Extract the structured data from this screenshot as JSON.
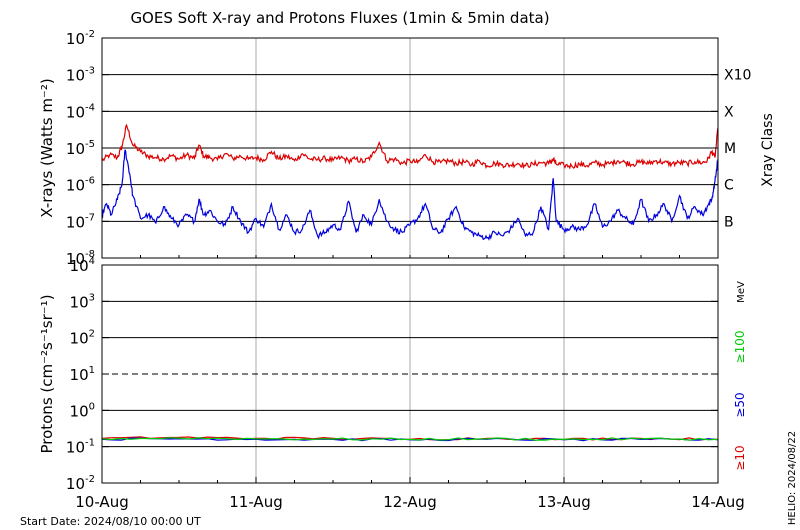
{
  "chart_data": [
    {
      "type": "line",
      "panel": "xray",
      "title": "GOES Soft X-ray and Protons Fluxes   (1min & 5min data)",
      "ylabel": "X-rays (Watts m⁻²)",
      "yscale": "log",
      "ylim": [
        "1e-8",
        "1e-2"
      ],
      "ytick_bases": [
        "10",
        "10",
        "10",
        "10",
        "10",
        "10",
        "10"
      ],
      "ytick_exponents": [
        "-8",
        "-7",
        "-6",
        "-5",
        "-4",
        "-3",
        "-2"
      ],
      "right_label": "Xray Class",
      "classes": [
        {
          "label": "B",
          "level": 1e-07
        },
        {
          "label": "C",
          "level": 1e-06
        },
        {
          "label": "M",
          "level": 1e-05
        },
        {
          "label": "X",
          "level": 0.0001
        },
        {
          "label": "X10",
          "level": 0.001
        }
      ],
      "series": [
        {
          "color": "#dd0000",
          "x": [
            0,
            0.05,
            0.1,
            0.13,
            0.16,
            0.2,
            0.25,
            0.3,
            0.35,
            0.4,
            0.45,
            0.5,
            0.55,
            0.6,
            0.63,
            0.66,
            0.7,
            0.75,
            0.8,
            0.85,
            0.9,
            0.95,
            1.0,
            1.05,
            1.1,
            1.15,
            1.2,
            1.25,
            1.3,
            1.35,
            1.4,
            1.45,
            1.5,
            1.55,
            1.6,
            1.65,
            1.7,
            1.75,
            1.8,
            1.85,
            1.9,
            1.95,
            2.0,
            2.05,
            2.1,
            2.15,
            2.2,
            2.25,
            2.3,
            2.35,
            2.4,
            2.45,
            2.5,
            2.55,
            2.6,
            2.65,
            2.7,
            2.75,
            2.8,
            2.85,
            2.9,
            2.93,
            2.95,
            3.0,
            3.05,
            3.1,
            3.15,
            3.2,
            3.25,
            3.3,
            3.35,
            3.4,
            3.45,
            3.5,
            3.55,
            3.6,
            3.65,
            3.7,
            3.75,
            3.8,
            3.85,
            3.9,
            3.93,
            3.96,
            3.98,
            4.0
          ],
          "y": [
            4.5e-06,
            6.5e-06,
            5.5e-06,
            1.1e-05,
            4.2e-05,
            1.2e-05,
            8e-06,
            6e-06,
            5.5e-06,
            5e-06,
            6.2e-06,
            5e-06,
            6.5e-06,
            5.2e-06,
            1.2e-05,
            6e-06,
            5.5e-06,
            4.8e-06,
            7e-06,
            5.2e-06,
            6e-06,
            5e-06,
            5.5e-06,
            4.8e-06,
            8e-06,
            5e-06,
            6e-06,
            4.5e-06,
            7e-06,
            5e-06,
            4.8e-06,
            5.2e-06,
            4.6e-06,
            5.5e-06,
            4.5e-06,
            5e-06,
            4.2e-06,
            5.8e-06,
            1.4e-05,
            4.5e-06,
            5e-06,
            3.8e-06,
            4.5e-06,
            4e-06,
            6.5e-06,
            4.2e-06,
            4e-06,
            4.5e-06,
            3.8e-06,
            4.2e-06,
            3.5e-06,
            4.5e-06,
            3.3e-06,
            3.8e-06,
            3.5e-06,
            3.4e-06,
            3.8e-06,
            3.3e-06,
            3.6e-06,
            4e-06,
            3.8e-06,
            5e-06,
            3.6e-06,
            3.4e-06,
            3.2e-06,
            3.6e-06,
            3.3e-06,
            4e-06,
            3.5e-06,
            3.8e-06,
            4.5e-06,
            4e-06,
            3.6e-06,
            4.2e-06,
            3.8e-06,
            4.5e-06,
            4e-06,
            3.7e-06,
            4e-06,
            3.8e-06,
            4.2e-06,
            4e-06,
            4.5e-06,
            8e-06,
            5.5e-06,
            3.5e-05
          ]
        },
        {
          "color": "#0000dd",
          "x": [
            0,
            0.03,
            0.06,
            0.1,
            0.13,
            0.15,
            0.18,
            0.2,
            0.25,
            0.3,
            0.35,
            0.4,
            0.45,
            0.5,
            0.55,
            0.6,
            0.63,
            0.66,
            0.7,
            0.75,
            0.8,
            0.85,
            0.9,
            0.95,
            1.0,
            1.05,
            1.1,
            1.15,
            1.2,
            1.25,
            1.3,
            1.35,
            1.4,
            1.45,
            1.5,
            1.55,
            1.6,
            1.65,
            1.7,
            1.75,
            1.8,
            1.85,
            1.9,
            1.95,
            2.0,
            2.05,
            2.1,
            2.15,
            2.2,
            2.25,
            2.3,
            2.35,
            2.4,
            2.45,
            2.5,
            2.55,
            2.6,
            2.65,
            2.7,
            2.75,
            2.8,
            2.85,
            2.9,
            2.93,
            2.95,
            3.0,
            3.05,
            3.1,
            3.15,
            3.2,
            3.25,
            3.3,
            3.35,
            3.4,
            3.45,
            3.5,
            3.55,
            3.6,
            3.65,
            3.7,
            3.75,
            3.8,
            3.85,
            3.9,
            3.93,
            3.96,
            3.98,
            4.0
          ],
          "y": [
            1.5e-07,
            3e-07,
            1.5e-07,
            4e-07,
            1e-06,
            9e-06,
            2e-06,
            5e-07,
            1.2e-07,
            1.5e-07,
            9e-08,
            2.5e-07,
            1.2e-07,
            8e-08,
            1.5e-07,
            1e-07,
            4e-07,
            1.5e-07,
            2e-07,
            1e-07,
            8e-08,
            2.5e-07,
            1e-07,
            5e-08,
            1.2e-07,
            7e-08,
            3e-07,
            6e-08,
            1.5e-07,
            5e-08,
            6e-08,
            2e-07,
            4e-08,
            5e-08,
            8e-08,
            6e-08,
            3.5e-07,
            5e-08,
            1.5e-07,
            8e-08,
            4e-07,
            1e-07,
            6e-08,
            5e-08,
            8e-08,
            1.2e-07,
            3e-07,
            6e-08,
            5e-08,
            1.2e-07,
            2.5e-07,
            7e-08,
            5e-08,
            4e-08,
            3.5e-08,
            5e-08,
            4e-08,
            6e-08,
            1.2e-07,
            4e-08,
            5e-08,
            2.5e-07,
            6e-08,
            1.5e-06,
            1e-07,
            6e-08,
            7e-08,
            6e-08,
            8e-08,
            3e-07,
            7e-08,
            1e-07,
            2e-07,
            1.2e-07,
            8e-08,
            4e-07,
            1e-07,
            1.5e-07,
            3e-07,
            1e-07,
            5e-07,
            1.2e-07,
            2.5e-07,
            1.5e-07,
            2.5e-07,
            4e-07,
            1.2e-06,
            5e-06
          ]
        }
      ]
    },
    {
      "type": "line",
      "panel": "protons",
      "ylabel": "Protons (cm⁻²s⁻¹sr⁻¹)",
      "yscale": "log",
      "ylim": [
        "1e-2",
        "1e4"
      ],
      "ytick_bases": [
        "10",
        "10",
        "10",
        "10",
        "10",
        "10",
        "10"
      ],
      "ytick_exponents": [
        "-2",
        "-1",
        "0",
        "1",
        "2",
        "3",
        "4"
      ],
      "threshold_line": 10,
      "xlabel": "",
      "x_tick_labels": [
        "10-Aug",
        "11-Aug",
        "12-Aug",
        "13-Aug",
        "14-Aug"
      ],
      "legend": {
        "placement": "right",
        "unit": "MeV",
        "entries": [
          {
            "label": "≥100",
            "color": "#00cc00"
          },
          {
            "label": "≥50",
            "color": "#0000dd"
          },
          {
            "label": "≥10",
            "color": "#dd0000"
          }
        ]
      },
      "series": [
        {
          "name": "≥10",
          "color": "#dd0000",
          "x": [
            0,
            0.5,
            1.0,
            1.5,
            2.0,
            2.5,
            3.0,
            3.5,
            4.0
          ],
          "y": [
            0.17,
            0.18,
            0.17,
            0.17,
            0.16,
            0.17,
            0.16,
            0.17,
            0.16
          ]
        },
        {
          "name": "≥50",
          "color": "#0000dd",
          "x": [
            0,
            0.5,
            1.0,
            1.5,
            2.0,
            2.5,
            3.0,
            3.5,
            4.0
          ],
          "y": [
            0.16,
            0.165,
            0.16,
            0.158,
            0.155,
            0.16,
            0.155,
            0.158,
            0.155
          ]
        },
        {
          "name": "≥100",
          "color": "#00cc00",
          "x": [
            0,
            0.5,
            1.0,
            1.5,
            2.0,
            2.5,
            3.0,
            3.5,
            4.0
          ],
          "y": [
            0.165,
            0.172,
            0.165,
            0.162,
            0.16,
            0.165,
            0.158,
            0.165,
            0.16
          ]
        }
      ]
    }
  ],
  "footer": {
    "start_date": "Start Date: 2024/08/10 00:00 UT",
    "credit": "HELIO: 2024/08/22"
  }
}
